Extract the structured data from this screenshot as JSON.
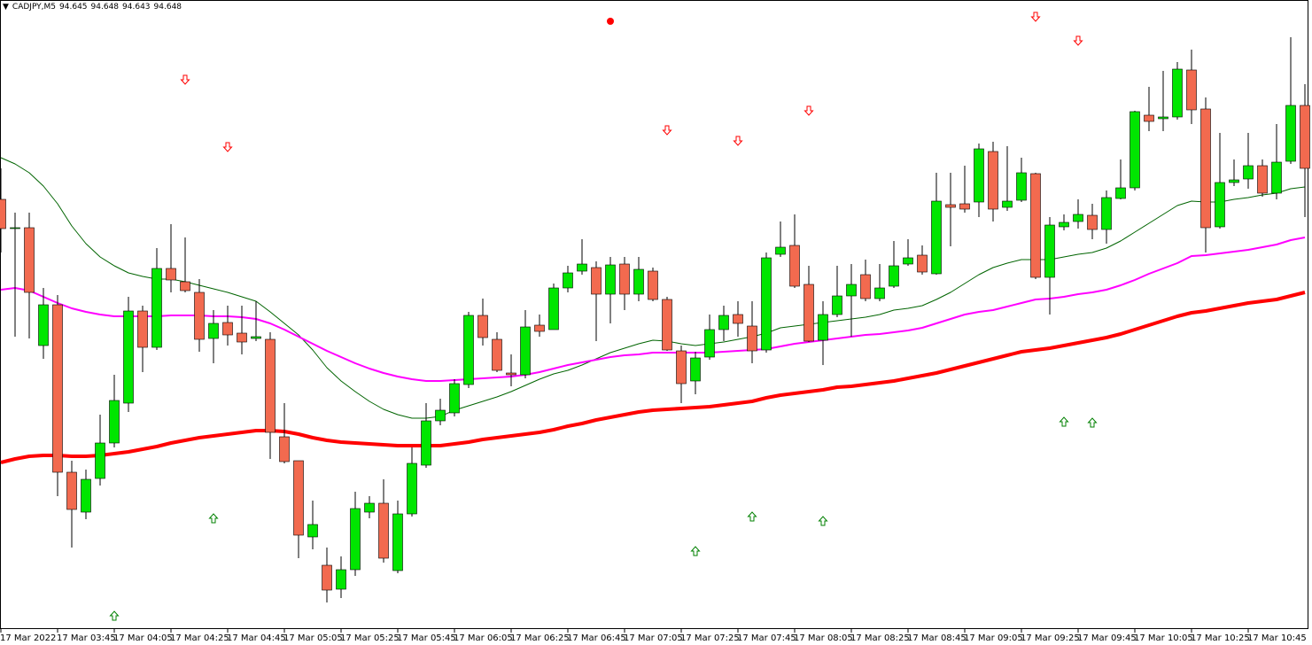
{
  "chart_data": {
    "type": "candlestick",
    "header": {
      "symbol": "CADJPY,M5",
      "values": [
        94.645,
        94.648,
        94.643,
        94.648
      ]
    },
    "categories": [
      "17 Mar 2022",
      null,
      null,
      null,
      "17 Mar 03:45",
      null,
      null,
      null,
      "17 Mar 04:05",
      null,
      null,
      null,
      "17 Mar 04:25",
      null,
      null,
      null,
      "17 Mar 04:45",
      null,
      null,
      null,
      "17 Mar 05:05",
      null,
      null,
      null,
      "17 Mar 05:25",
      null,
      null,
      null,
      "17 Mar 05:45",
      null,
      null,
      null,
      "17 Mar 06:05",
      null,
      null,
      null,
      "17 Mar 06:25",
      null,
      null,
      null,
      "17 Mar 06:45",
      null,
      null,
      null,
      "17 Mar 07:05",
      null,
      null,
      null,
      "17 Mar 07:25",
      null,
      null,
      null,
      "17 Mar 07:45",
      null,
      null,
      null,
      "17 Mar 08:05",
      null,
      null,
      null,
      "17 Mar 08:25",
      null,
      null,
      null,
      "17 Mar 08:45",
      null,
      null,
      null,
      "17 Mar 09:05",
      null,
      null,
      null,
      "17 Mar 09:25",
      null,
      null,
      null,
      "17 Mar 09:45",
      null,
      null,
      null,
      "17 Mar 10:05",
      null,
      null,
      null,
      "17 Mar 10:25",
      null,
      null,
      null,
      "17 Mar 10:45",
      null,
      null,
      null,
      null
    ],
    "open": [
      94.615,
      94.583,
      94.583,
      94.45,
      94.496,
      94.307,
      94.262,
      94.3,
      94.34,
      94.385,
      94.489,
      94.448,
      94.537,
      94.522,
      94.51,
      94.458,
      94.476,
      94.464,
      94.458,
      94.457,
      94.347,
      94.32,
      94.234,
      94.202,
      94.175,
      94.197,
      94.262,
      94.272,
      94.196,
      94.26,
      94.315,
      94.365,
      94.374,
      94.406,
      94.484,
      94.457,
      94.419,
      94.417,
      94.473,
      94.468,
      94.515,
      94.534,
      94.538,
      94.508,
      94.542,
      94.508,
      94.534,
      94.502,
      94.444,
      94.41,
      94.437,
      94.468,
      94.485,
      94.472,
      94.445,
      94.553,
      94.563,
      94.519,
      94.456,
      94.485,
      94.506,
      94.53,
      94.503,
      94.517,
      94.542,
      94.552,
      94.531,
      94.609,
      94.61,
      94.612,
      94.669,
      94.606,
      94.614,
      94.644,
      94.527,
      94.584,
      94.59,
      94.597,
      94.581,
      94.616,
      94.628,
      94.71,
      94.706,
      94.708,
      94.761,
      94.717,
      94.584,
      94.634,
      94.638,
      94.653,
      94.622,
      94.658,
      94.721
    ],
    "high": [
      94.65,
      94.6,
      94.6,
      94.515,
      94.507,
      94.32,
      94.31,
      94.372,
      94.417,
      94.505,
      94.495,
      94.56,
      94.587,
      94.572,
      94.525,
      94.49,
      94.495,
      94.495,
      94.5,
      94.465,
      94.385,
      94.32,
      94.275,
      94.222,
      94.212,
      94.285,
      94.28,
      94.299,
      94.275,
      94.335,
      94.385,
      94.39,
      94.412,
      94.488,
      94.503,
      94.465,
      94.44,
      94.49,
      94.485,
      94.52,
      94.54,
      94.57,
      94.545,
      94.55,
      94.55,
      94.55,
      94.538,
      94.505,
      94.45,
      94.443,
      94.485,
      94.495,
      94.5,
      94.5,
      94.555,
      94.59,
      94.598,
      94.54,
      94.5,
      94.54,
      94.542,
      94.547,
      94.542,
      94.568,
      94.57,
      94.563,
      94.645,
      94.645,
      94.653,
      94.678,
      94.68,
      94.675,
      94.662,
      94.645,
      94.595,
      94.598,
      94.615,
      94.61,
      94.625,
      94.66,
      94.715,
      94.742,
      94.76,
      94.77,
      94.784,
      94.73,
      94.69,
      94.66,
      94.69,
      94.66,
      94.7,
      94.798,
      94.745
    ],
    "low": [
      94.555,
      94.46,
      94.458,
      94.435,
      94.28,
      94.222,
      94.254,
      94.292,
      94.335,
      94.375,
      94.42,
      94.445,
      94.51,
      94.51,
      94.443,
      94.43,
      94.45,
      94.44,
      94.455,
      94.322,
      94.317,
      94.21,
      94.22,
      94.16,
      94.165,
      94.19,
      94.255,
      94.205,
      94.193,
      94.257,
      94.312,
      94.36,
      94.37,
      94.402,
      94.45,
      94.42,
      94.404,
      94.413,
      94.46,
      94.468,
      94.51,
      94.53,
      94.455,
      94.475,
      94.49,
      94.5,
      94.5,
      94.444,
      94.385,
      94.395,
      94.434,
      94.455,
      94.46,
      94.43,
      94.442,
      94.55,
      94.515,
      94.454,
      94.428,
      94.482,
      94.46,
      94.5,
      94.5,
      94.515,
      94.54,
      94.53,
      94.53,
      94.562,
      94.6,
      94.595,
      94.59,
      94.602,
      94.612,
      94.525,
      94.485,
      94.58,
      94.582,
      94.57,
      94.565,
      94.615,
      94.625,
      94.692,
      94.692,
      94.705,
      94.7,
      94.555,
      94.582,
      94.63,
      94.627,
      94.618,
      94.615,
      94.655,
      94.595
    ],
    "close": [
      94.582,
      94.583,
      94.51,
      94.496,
      94.307,
      94.265,
      94.299,
      94.34,
      94.388,
      94.489,
      94.448,
      94.537,
      94.524,
      94.512,
      94.457,
      94.475,
      94.462,
      94.454,
      94.46,
      94.352,
      94.319,
      94.236,
      94.248,
      94.174,
      94.197,
      94.266,
      94.272,
      94.21,
      94.26,
      94.317,
      94.365,
      94.377,
      94.407,
      94.484,
      94.459,
      94.422,
      94.417,
      94.471,
      94.466,
      94.515,
      94.532,
      94.542,
      94.508,
      94.541,
      94.508,
      94.536,
      94.502,
      94.445,
      94.407,
      94.436,
      94.468,
      94.484,
      94.475,
      94.444,
      94.549,
      94.561,
      94.517,
      94.455,
      94.485,
      94.506,
      94.519,
      94.503,
      94.515,
      94.54,
      94.549,
      94.533,
      94.613,
      94.606,
      94.604,
      94.672,
      94.604,
      94.613,
      94.645,
      94.527,
      94.586,
      94.589,
      94.598,
      94.581,
      94.617,
      94.628,
      94.714,
      94.703,
      94.708,
      94.762,
      94.716,
      94.583,
      94.634,
      94.637,
      94.653,
      94.622,
      94.657,
      94.721,
      94.65
    ],
    "up_color": "#00e600",
    "down_color": "#f26a4f",
    "ylim": [
      94.13,
      94.84
    ],
    "lines": [
      {
        "color": "#006400",
        "width": 1,
        "values": [
          94.662,
          94.655,
          94.645,
          94.63,
          94.61,
          94.585,
          94.565,
          94.55,
          94.54,
          94.532,
          94.528,
          94.525,
          94.525,
          94.522,
          94.518,
          94.514,
          94.51,
          94.505,
          94.5,
          94.488,
          94.475,
          94.462,
          94.445,
          94.425,
          94.41,
          94.398,
          94.387,
          94.378,
          94.372,
          94.368,
          94.368,
          94.37,
          94.377,
          94.382,
          94.387,
          94.392,
          94.398,
          94.405,
          94.412,
          94.418,
          94.422,
          94.428,
          94.435,
          94.442,
          94.447,
          94.452,
          94.456,
          94.455,
          94.452,
          94.45,
          94.452,
          94.454,
          94.457,
          94.46,
          94.464,
          94.47,
          94.472,
          94.474,
          94.476,
          94.478,
          94.48,
          94.482,
          94.485,
          94.49,
          94.492,
          94.495,
          94.502,
          94.51,
          94.52,
          94.53,
          94.538,
          94.543,
          94.547,
          94.547,
          94.547,
          94.55,
          94.553,
          94.555,
          94.56,
          94.568,
          94.578,
          94.588,
          94.598,
          94.608,
          94.613,
          94.612,
          94.612,
          94.615,
          94.617,
          94.62,
          94.622,
          94.627,
          94.629
        ]
      },
      {
        "color": "#ff00ff",
        "width": 2,
        "values": [
          94.513,
          94.515,
          94.512,
          94.505,
          94.498,
          94.492,
          94.488,
          94.485,
          94.483,
          94.483,
          94.483,
          94.483,
          94.484,
          94.484,
          94.484,
          94.483,
          94.483,
          94.482,
          94.48,
          94.475,
          94.468,
          94.46,
          94.452,
          94.444,
          94.437,
          94.43,
          94.424,
          94.419,
          94.415,
          94.412,
          94.41,
          94.41,
          94.411,
          94.412,
          94.413,
          94.414,
          94.415,
          94.417,
          94.42,
          94.424,
          94.428,
          94.431,
          94.434,
          94.437,
          94.439,
          94.44,
          94.442,
          94.442,
          94.442,
          94.442,
          94.442,
          94.443,
          94.444,
          94.445,
          94.446,
          94.449,
          94.452,
          94.454,
          94.456,
          94.458,
          94.46,
          94.462,
          94.463,
          94.465,
          94.467,
          94.47,
          94.475,
          94.48,
          94.485,
          94.488,
          94.49,
          94.494,
          94.498,
          94.502,
          94.503,
          94.505,
          94.508,
          94.51,
          94.513,
          94.518,
          94.524,
          94.531,
          94.537,
          94.543,
          94.551,
          94.552,
          94.554,
          94.556,
          94.558,
          94.561,
          94.564,
          94.569,
          94.572
        ]
      },
      {
        "color": "#ff0000",
        "width": 4,
        "values": [
          94.318,
          94.322,
          94.325,
          94.326,
          94.326,
          94.325,
          94.325,
          94.326,
          94.328,
          94.33,
          94.333,
          94.336,
          94.34,
          94.343,
          94.346,
          94.348,
          94.35,
          94.352,
          94.354,
          94.354,
          94.353,
          94.35,
          94.346,
          94.343,
          94.341,
          94.34,
          94.339,
          94.338,
          94.337,
          94.337,
          94.337,
          94.337,
          94.339,
          94.341,
          94.344,
          94.346,
          94.348,
          94.35,
          94.352,
          94.355,
          94.359,
          94.362,
          94.366,
          94.369,
          94.372,
          94.375,
          94.377,
          94.378,
          94.379,
          94.38,
          94.381,
          94.383,
          94.385,
          94.387,
          94.391,
          94.394,
          94.396,
          94.398,
          94.4,
          94.403,
          94.404,
          94.406,
          94.408,
          94.41,
          94.413,
          94.416,
          94.419,
          94.423,
          94.427,
          94.431,
          94.435,
          94.439,
          94.443,
          94.445,
          94.447,
          94.45,
          94.453,
          94.456,
          94.459,
          94.463,
          94.468,
          94.473,
          94.478,
          94.483,
          94.487,
          94.489,
          94.492,
          94.495,
          94.498,
          94.5,
          94.502,
          94.506,
          94.51
        ]
      }
    ],
    "down_arrows": {
      "color": "#ff0000",
      "x": [
        13,
        16,
        47,
        52,
        57,
        73,
        76
      ],
      "y": [
        94.75,
        94.674,
        94.693,
        94.681,
        94.715,
        94.821,
        94.794
      ]
    },
    "up_arrows": {
      "color": "#008000",
      "x": [
        8,
        15,
        49,
        53,
        58,
        75,
        77
      ],
      "y": [
        94.145,
        94.255,
        94.218,
        94.257,
        94.252,
        94.364,
        94.363
      ]
    },
    "dot": {
      "color": "#ff0000",
      "x": 43,
      "y": 94.816
    }
  }
}
